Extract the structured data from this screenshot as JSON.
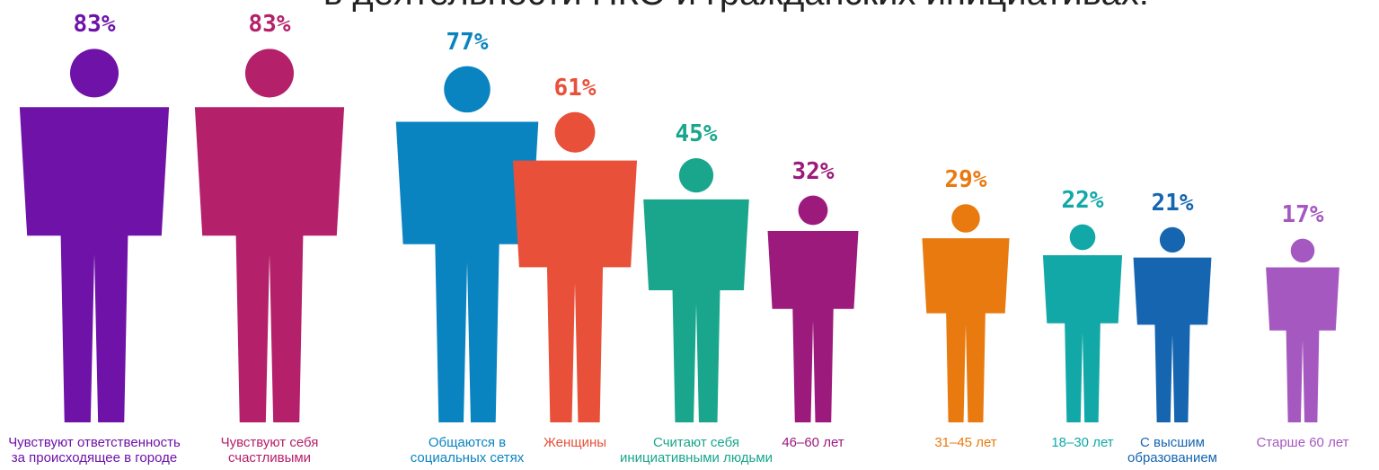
{
  "chart_data": {
    "type": "pictograph",
    "title": "в деятельности НКО и гражданских инициативах:",
    "categories": [
      "Чувствуют ответственность за происходящее в городе",
      "Чувствуют себя счастливыми",
      "Общаются в социальных сетях",
      "Женщины",
      "Считают себя инициативными людьми",
      "46–60 лет",
      "31–45 лет",
      "18–30 лет",
      "С высшим образованием",
      "Старше 60 лет"
    ],
    "values": [
      83,
      83,
      77,
      61,
      45,
      32,
      29,
      22,
      21,
      17
    ],
    "value_labels": [
      "83%",
      "83%",
      "77%",
      "61%",
      "45%",
      "32%",
      "29%",
      "22%",
      "21%",
      "17%"
    ],
    "colors": [
      "#6e12a8",
      "#b5206a",
      "#0a84c0",
      "#e8503a",
      "#19a68c",
      "#9c1a7c",
      "#e87a10",
      "#12a8a8",
      "#1565b0",
      "#a558c0"
    ]
  }
}
